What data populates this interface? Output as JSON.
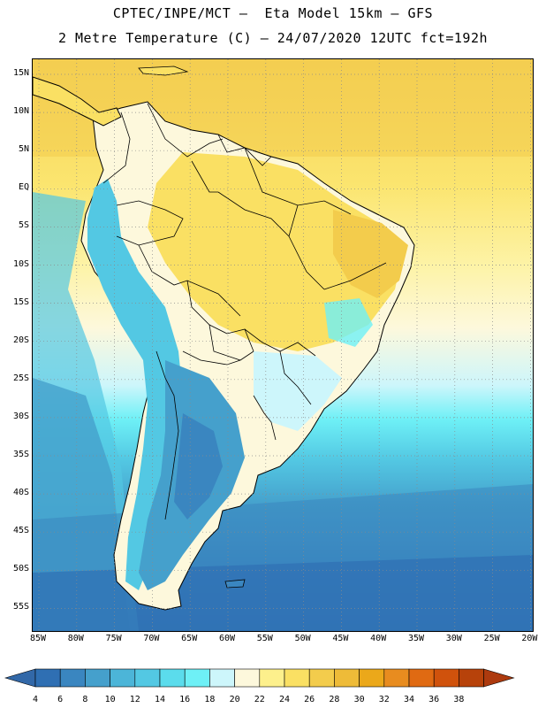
{
  "header": {
    "line1": "CPTEC/INPE/MCT –  Eta Model 15km – GFS",
    "line2": "2 Metre Temperature (C) – 24/07/2020 12UTC fct=192h"
  },
  "map": {
    "lat_labels": [
      "15N",
      "10N",
      "5N",
      "EQ",
      "5S",
      "10S",
      "15S",
      "20S",
      "25S",
      "30S",
      "35S",
      "40S",
      "45S",
      "50S",
      "55S"
    ],
    "lon_labels": [
      "85W",
      "80W",
      "75W",
      "70W",
      "65W",
      "60W",
      "55W",
      "50W",
      "45W",
      "40W",
      "35W",
      "30W",
      "25W",
      "20W"
    ]
  },
  "legend": {
    "labels": [
      "4",
      "6",
      "8",
      "10",
      "12",
      "14",
      "16",
      "18",
      "20",
      "22",
      "24",
      "26",
      "28",
      "30",
      "32",
      "34",
      "36",
      "38"
    ],
    "colors": [
      "#2f6fb3",
      "#3a86c0",
      "#45a0cc",
      "#4cb5d8",
      "#53c8e3",
      "#5bdcec",
      "#6ef0f6",
      "#cdf6fb",
      "#fdf8dc",
      "#fdf08c",
      "#fae063",
      "#f3cc4c",
      "#eebb38",
      "#eba81a",
      "#e88c1f",
      "#e06a12",
      "#d0520c",
      "#b7420a"
    ],
    "under_color": "#3268a8",
    "over_color": "#ad3a0e"
  }
}
